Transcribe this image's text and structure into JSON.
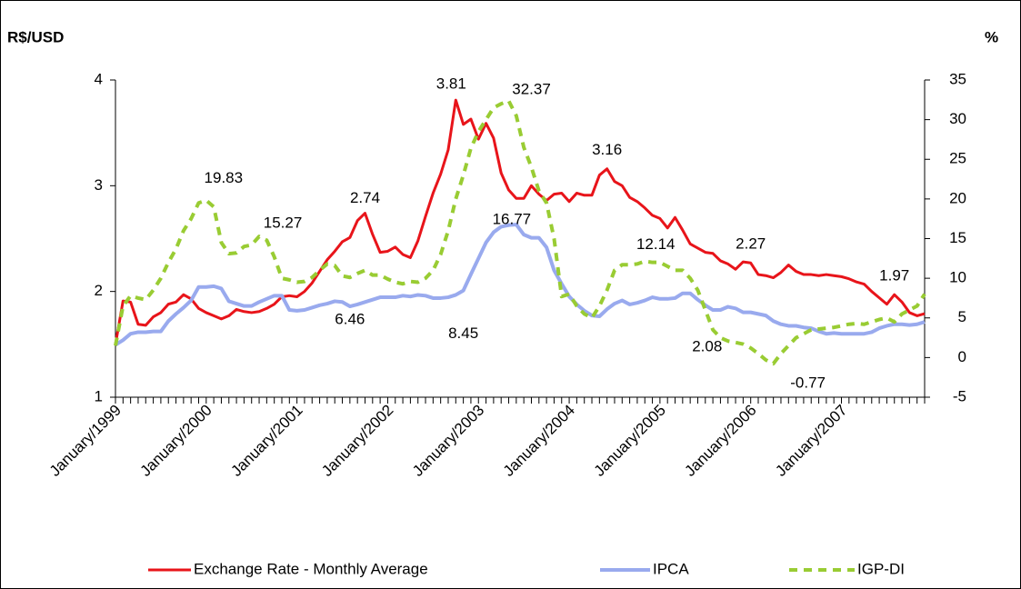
{
  "chart_data": {
    "type": "line",
    "y_label": "R$/USD",
    "y2_label": "%",
    "categories": [
      "January/1999",
      null,
      null,
      null,
      null,
      null,
      null,
      null,
      null,
      null,
      null,
      null,
      "January/2000",
      null,
      null,
      null,
      null,
      null,
      null,
      null,
      null,
      null,
      null,
      null,
      "January/2001",
      null,
      null,
      null,
      null,
      null,
      null,
      null,
      null,
      null,
      null,
      null,
      "January/2002",
      null,
      null,
      null,
      null,
      null,
      null,
      null,
      null,
      null,
      null,
      null,
      "January/2003",
      null,
      null,
      null,
      null,
      null,
      null,
      null,
      null,
      null,
      null,
      null,
      "January/2004",
      null,
      null,
      null,
      null,
      null,
      null,
      null,
      null,
      null,
      null,
      null,
      "January/2005",
      null,
      null,
      null,
      null,
      null,
      null,
      null,
      null,
      null,
      null,
      null,
      "January/2006",
      null,
      null,
      null,
      null,
      null,
      null,
      null,
      null,
      null,
      null,
      null,
      "January/2007",
      null,
      null,
      null,
      null,
      null,
      null,
      null,
      null,
      null,
      null,
      null
    ],
    "ylim": [
      1,
      4
    ],
    "yticks": [
      1,
      2,
      3,
      4
    ],
    "y2lim": [
      -5,
      35
    ],
    "y2ticks": [
      -5,
      0,
      5,
      10,
      15,
      20,
      25,
      30,
      35
    ],
    "series": [
      {
        "name": "Exchange Rate - Monthly Average",
        "color": "#e8141a",
        "label_color": "#e8141a",
        "labeled_points": [
          33,
          45,
          65,
          84,
          103
        ],
        "values": [
          1.5,
          1.91,
          1.9,
          1.69,
          1.68,
          1.76,
          1.8,
          1.88,
          1.9,
          1.97,
          1.93,
          1.84,
          1.8,
          1.77,
          1.74,
          1.77,
          1.83,
          1.81,
          1.8,
          1.81,
          1.84,
          1.88,
          1.95,
          1.96,
          1.95,
          2.0,
          2.08,
          2.19,
          2.3,
          2.38,
          2.47,
          2.51,
          2.67,
          2.74,
          2.54,
          2.37,
          2.38,
          2.42,
          2.35,
          2.32,
          2.48,
          2.71,
          2.93,
          3.11,
          3.34,
          3.81,
          3.58,
          3.63,
          3.44,
          3.59,
          3.45,
          3.12,
          2.96,
          2.88,
          2.88,
          3.0,
          2.92,
          2.86,
          2.92,
          2.93,
          2.85,
          2.93,
          2.91,
          2.91,
          3.1,
          3.16,
          3.04,
          3.0,
          2.89,
          2.85,
          2.79,
          2.72,
          2.69,
          2.6,
          2.7,
          2.58,
          2.45,
          2.41,
          2.37,
          2.36,
          2.29,
          2.26,
          2.21,
          2.28,
          2.27,
          2.16,
          2.15,
          2.13,
          2.18,
          2.25,
          2.19,
          2.16,
          2.16,
          2.15,
          2.16,
          2.15,
          2.14,
          2.12,
          2.09,
          2.07,
          2.0,
          1.94,
          1.88,
          1.97,
          1.9,
          1.8,
          1.77,
          1.79
        ]
      },
      {
        "name": "IPCA",
        "color": "#99aaee",
        "label_color": "#000000",
        "axis": "y2",
        "labeled_points": [
          31,
          46,
          53
        ],
        "values": [
          1.6,
          2.2,
          3.0,
          3.2,
          3.2,
          3.3,
          3.3,
          4.6,
          5.5,
          6.3,
          7.2,
          8.9,
          8.9,
          9.0,
          8.7,
          7.1,
          6.8,
          6.5,
          6.5,
          7.0,
          7.4,
          7.8,
          7.8,
          6.0,
          5.9,
          6.0,
          6.3,
          6.6,
          6.8,
          7.1,
          7.0,
          6.46,
          6.7,
          7.0,
          7.3,
          7.6,
          7.6,
          7.6,
          7.8,
          7.7,
          7.9,
          7.8,
          7.5,
          7.5,
          7.6,
          7.9,
          8.45,
          10.5,
          12.5,
          14.5,
          15.8,
          16.5,
          16.7,
          16.77,
          15.5,
          15.1,
          15.1,
          13.9,
          11.0,
          9.3,
          7.7,
          6.7,
          5.9,
          5.3,
          5.2,
          6.1,
          6.8,
          7.2,
          6.7,
          6.9,
          7.2,
          7.6,
          7.4,
          7.4,
          7.5,
          8.1,
          8.1,
          7.3,
          6.6,
          6.0,
          6.0,
          6.4,
          6.2,
          5.7,
          5.7,
          5.5,
          5.3,
          4.6,
          4.2,
          4.0,
          4.0,
          3.8,
          3.7,
          3.3,
          3.0,
          3.1,
          3.0,
          3.0,
          3.0,
          3.0,
          3.2,
          3.7,
          4.0,
          4.2,
          4.2,
          4.1,
          4.2,
          4.5
        ]
      },
      {
        "name": "IGP-DI",
        "color": "#99cc33",
        "label_color": "#000000",
        "axis": "y2",
        "dashed": true,
        "labeled_points": [
          12,
          19,
          52,
          70,
          81,
          87
        ],
        "values": [
          1.5,
          6.5,
          7.8,
          7.5,
          7.3,
          8.5,
          10.0,
          12.0,
          13.7,
          16.0,
          17.5,
          19.5,
          19.83,
          19.0,
          14.5,
          13.1,
          13.2,
          14.0,
          14.2,
          15.27,
          14.8,
          12.7,
          10.0,
          9.8,
          9.5,
          9.6,
          10.1,
          11.0,
          11.8,
          11.6,
          10.3,
          10.1,
          10.6,
          11.0,
          10.4,
          10.4,
          9.9,
          9.5,
          9.3,
          9.6,
          9.5,
          10.0,
          11.0,
          13.0,
          16.0,
          20.0,
          23.0,
          26.4,
          28.5,
          30.0,
          31.5,
          32.0,
          32.37,
          30.5,
          26.5,
          24.0,
          21.0,
          19.5,
          15.0,
          7.7,
          8.0,
          6.5,
          5.5,
          5.0,
          6.5,
          8.5,
          11.0,
          11.7,
          11.7,
          11.8,
          12.14,
          12.0,
          12.0,
          11.5,
          11.0,
          11.0,
          10.0,
          8.5,
          6.0,
          3.5,
          2.5,
          2.08,
          1.9,
          1.7,
          1.2,
          0.5,
          -0.3,
          -0.77,
          0.5,
          1.5,
          2.5,
          3.0,
          3.5,
          3.6,
          3.7,
          3.8,
          4.0,
          4.2,
          4.3,
          4.2,
          4.5,
          4.8,
          5.0,
          4.5,
          5.5,
          6.0,
          6.5,
          8.0
        ]
      }
    ]
  }
}
